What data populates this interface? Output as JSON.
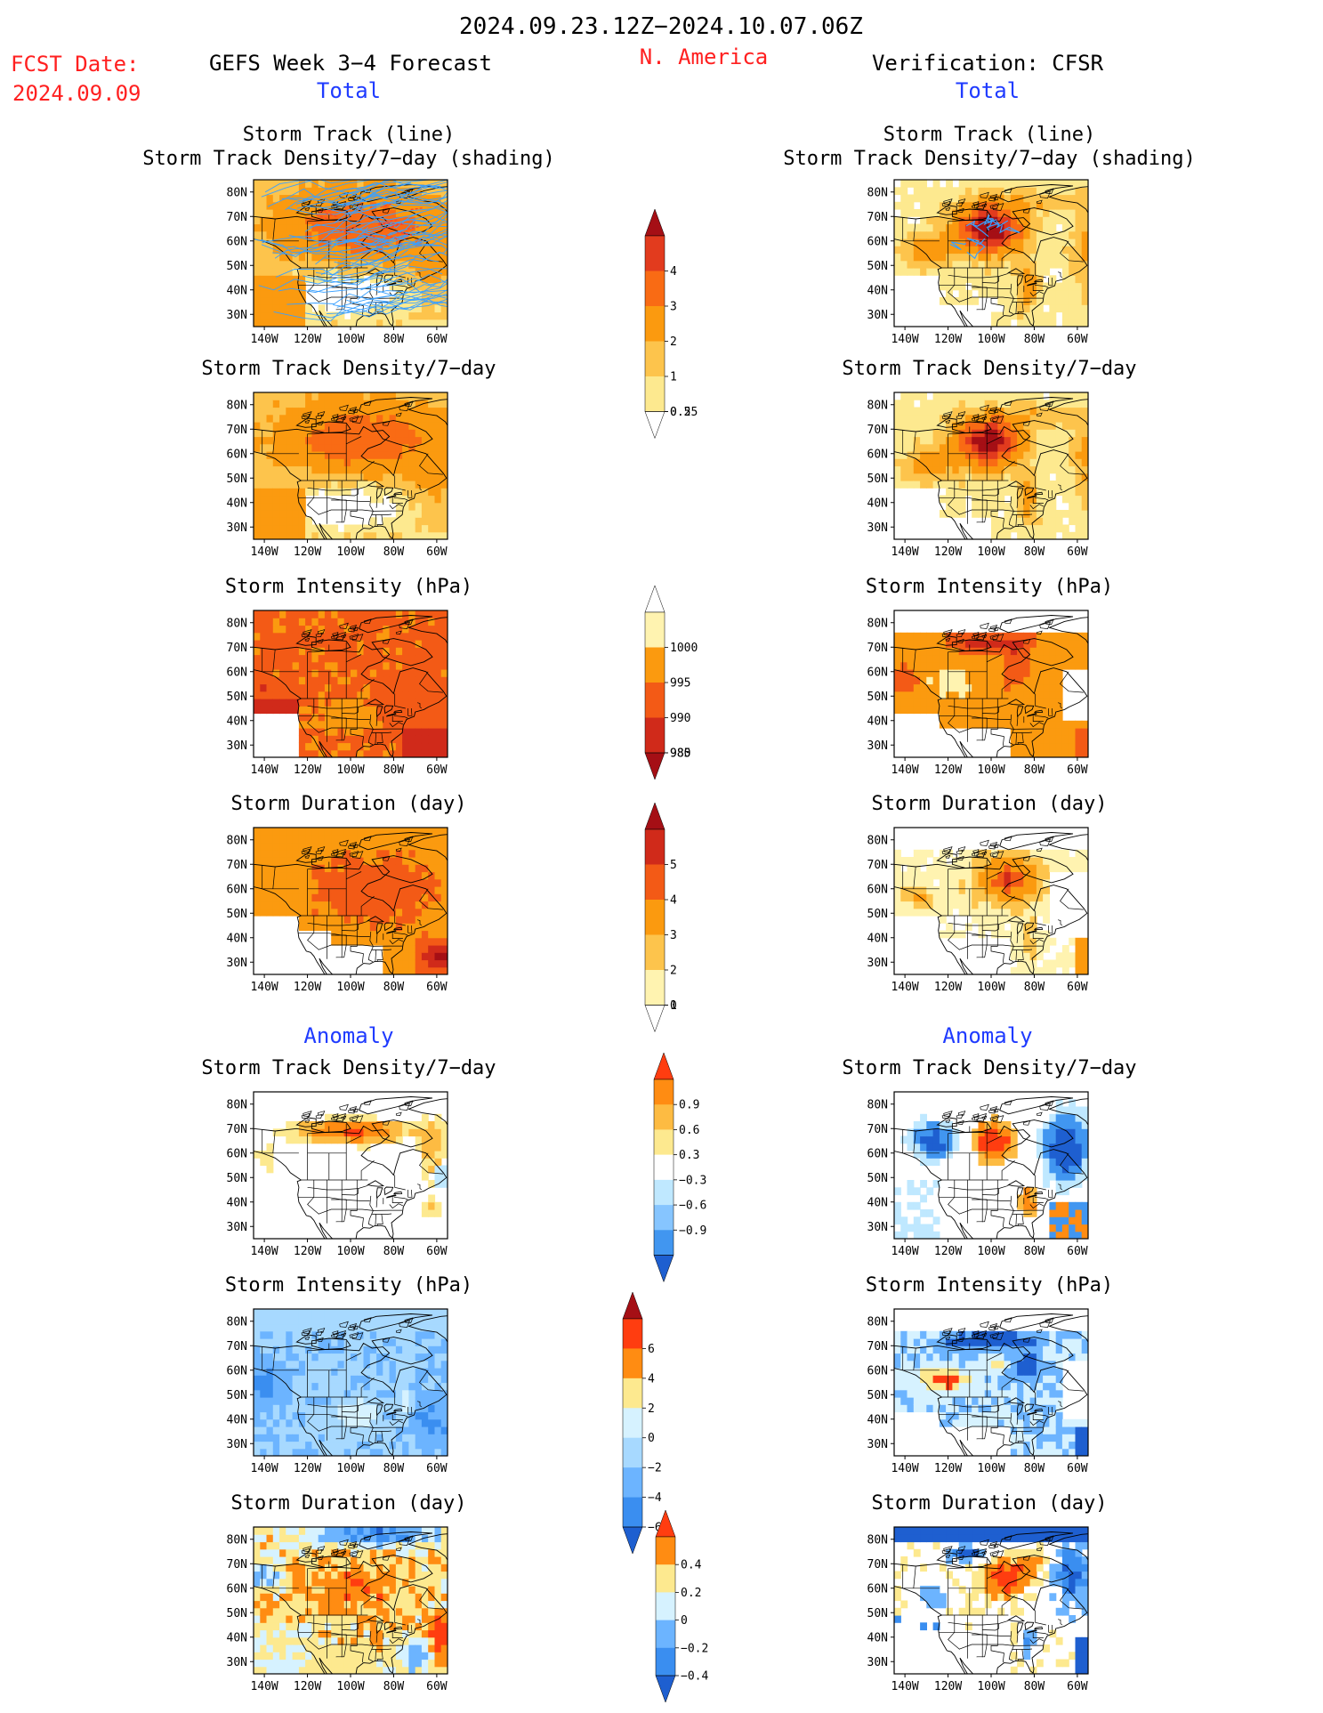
{
  "header": {
    "period": "2024.09.23.12Z−2024.10.07.06Z",
    "fcst_label": "FCST Date:",
    "fcst_date": "2024.09.09",
    "model_title": "GEFS Week 3−4 Forecast",
    "region": "N. America",
    "verification_title": "Verification: CFSR",
    "total_label": "Total",
    "anomaly_label": "Anomaly"
  },
  "colors": {
    "red_text": "#ff2020",
    "blue_text": "#1f3bff",
    "black": "#000000",
    "track_line": "#3aa0ff",
    "water": "#ffffff",
    "land_border": "#000000"
  },
  "axes": {
    "lon_ticks": [
      "140W",
      "120W",
      "100W",
      "80W",
      "60W"
    ],
    "lat_ticks": [
      "80N",
      "70N",
      "60N",
      "50N",
      "40N",
      "30N"
    ],
    "lon_range": [
      -145,
      -55
    ],
    "lat_range": [
      25,
      85
    ]
  },
  "colorbars": [
    {
      "id": "density-total",
      "labels": [
        "4",
        "3",
        "2",
        "1",
        "0.5",
        "0.25"
      ],
      "colors": [
        "#a50f15",
        "#e23b1e",
        "#f96b14",
        "#fb9a0f",
        "#fdc44c",
        "#fde98f",
        "#ffffff"
      ],
      "extend": "both"
    },
    {
      "id": "intensity-total",
      "labels": [
        "1000",
        "995",
        "990",
        "985",
        "980"
      ],
      "colors": [
        "#ffffff",
        "#fff3b0",
        "#fb9a0f",
        "#f35a16",
        "#d02a1a",
        "#a50f15"
      ],
      "extend": "both"
    },
    {
      "id": "duration-total",
      "labels": [
        "5",
        "4",
        "3",
        "2",
        "1",
        "0"
      ],
      "colors": [
        "#a50f15",
        "#d02a1a",
        "#f35a16",
        "#fb9a0f",
        "#fdc44c",
        "#fff3b0",
        "#ffffff"
      ],
      "extend": "both"
    },
    {
      "id": "density-anom",
      "labels": [
        "0.9",
        "0.6",
        "0.3",
        "−0.3",
        "−0.6",
        "−0.9"
      ],
      "colors": [
        "#ff3d10",
        "#ff8c12",
        "#fdbb42",
        "#fde98f",
        "#ffffff",
        "#bfe8ff",
        "#86c5ff",
        "#4196f0",
        "#1e5fd0"
      ],
      "extend": "both"
    },
    {
      "id": "intensity-anom",
      "labels": [
        "6",
        "4",
        "2",
        "0",
        "−2",
        "−4",
        "−6"
      ],
      "colors": [
        "#a50f15",
        "#ff3d10",
        "#ff8c12",
        "#fde98f",
        "#d6f2ff",
        "#a7d9ff",
        "#6cb4ff",
        "#3a8ef0",
        "#1e5fd0"
      ],
      "extend": "both"
    },
    {
      "id": "duration-anom",
      "labels": [
        "0.4",
        "0.2",
        "0",
        "−0.2",
        "−0.4"
      ],
      "colors": [
        "#ff3d10",
        "#ff8c12",
        "#fde98f",
        "#d6f2ff",
        "#6cb4ff",
        "#3a8ef0",
        "#1e5fd0"
      ],
      "extend": "both"
    }
  ],
  "chart_data": [
    {
      "type": "heatmap",
      "column": "GEFS",
      "section": "Total",
      "title_lines": [
        "Storm Track (line)",
        "Storm Track Density/7−day (shading)"
      ],
      "variable": "storm track density",
      "tracks": true,
      "pattern": "gefs-density"
    },
    {
      "type": "heatmap",
      "column": "GEFS",
      "section": "Total",
      "title_lines": [
        "Storm Track Density/7−day"
      ],
      "variable": "storm track density",
      "tracks": false,
      "pattern": "gefs-density"
    },
    {
      "type": "heatmap",
      "column": "GEFS",
      "section": "Total",
      "title_lines": [
        "Storm Intensity (hPa)"
      ],
      "variable": "storm intensity",
      "tracks": false,
      "pattern": "gefs-intensity"
    },
    {
      "type": "heatmap",
      "column": "GEFS",
      "section": "Total",
      "title_lines": [
        "Storm Duration (day)"
      ],
      "variable": "storm duration",
      "tracks": false,
      "pattern": "gefs-duration"
    },
    {
      "type": "heatmap",
      "column": "GEFS",
      "section": "Anomaly",
      "title_lines": [
        "Storm Track Density/7−day"
      ],
      "variable": "storm track density anomaly",
      "tracks": false,
      "pattern": "gefs-density-anom"
    },
    {
      "type": "heatmap",
      "column": "GEFS",
      "section": "Anomaly",
      "title_lines": [
        "Storm Intensity (hPa)"
      ],
      "variable": "storm intensity anomaly",
      "tracks": false,
      "pattern": "gefs-intensity-anom"
    },
    {
      "type": "heatmap",
      "column": "GEFS",
      "section": "Anomaly",
      "title_lines": [
        "Storm Duration (day)"
      ],
      "variable": "storm duration anomaly",
      "tracks": false,
      "pattern": "gefs-duration-anom"
    },
    {
      "type": "heatmap",
      "column": "CFSR",
      "section": "Total",
      "title_lines": [
        "Storm Track (line)",
        "Storm Track Density/7−day (shading)"
      ],
      "variable": "storm track density",
      "tracks": true,
      "pattern": "cfsr-density"
    },
    {
      "type": "heatmap",
      "column": "CFSR",
      "section": "Total",
      "title_lines": [
        "Storm Track Density/7−day"
      ],
      "variable": "storm track density",
      "tracks": false,
      "pattern": "cfsr-density"
    },
    {
      "type": "heatmap",
      "column": "CFSR",
      "section": "Total",
      "title_lines": [
        "Storm Intensity (hPa)"
      ],
      "variable": "storm intensity",
      "tracks": false,
      "pattern": "cfsr-intensity"
    },
    {
      "type": "heatmap",
      "column": "CFSR",
      "section": "Total",
      "title_lines": [
        "Storm Duration (day)"
      ],
      "variable": "storm duration",
      "tracks": false,
      "pattern": "cfsr-duration"
    },
    {
      "type": "heatmap",
      "column": "CFSR",
      "section": "Anomaly",
      "title_lines": [
        "Storm Track Density/7−day"
      ],
      "variable": "storm track density anomaly",
      "tracks": false,
      "pattern": "cfsr-density-anom"
    },
    {
      "type": "heatmap",
      "column": "CFSR",
      "section": "Anomaly",
      "title_lines": [
        "Storm Intensity (hPa)"
      ],
      "variable": "storm intensity anomaly",
      "tracks": false,
      "pattern": "cfsr-intensity-anom"
    },
    {
      "type": "heatmap",
      "column": "CFSR",
      "section": "Anomaly",
      "title_lines": [
        "Storm Duration (day)"
      ],
      "variable": "storm duration anomaly",
      "tracks": false,
      "pattern": "cfsr-duration-anom"
    }
  ]
}
